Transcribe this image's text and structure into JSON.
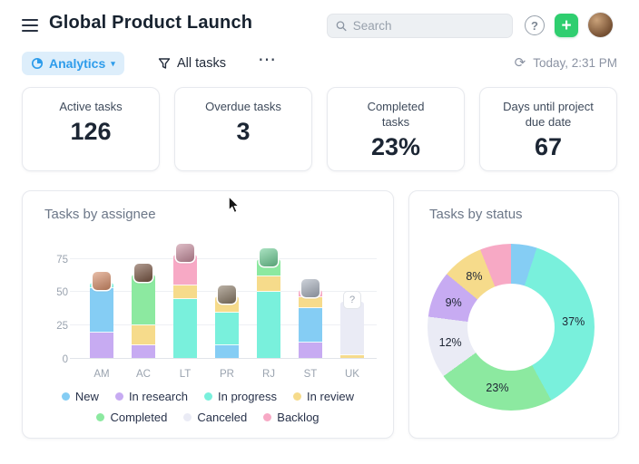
{
  "header": {
    "title": "Global Product Launch",
    "search_placeholder": "Search",
    "time": "Today, 2:31 PM"
  },
  "toolbar": {
    "analytics_label": "Analytics",
    "filter_label": "All tasks"
  },
  "icons": {
    "help": "?",
    "add": "+",
    "more": "⋯",
    "chevron_down": "▾",
    "refresh": "⟳"
  },
  "stats": [
    {
      "label": "Active tasks",
      "value": "126"
    },
    {
      "label": "Overdue tasks",
      "value": "3"
    },
    {
      "label": "Completed tasks",
      "value": "23%"
    },
    {
      "label": "Days until project due date",
      "value": "67"
    }
  ],
  "chart_data": [
    {
      "type": "bar",
      "stacked": true,
      "title": "Tasks by assignee",
      "categories": [
        "AM",
        "AC",
        "LT",
        "PR",
        "RJ",
        "ST",
        "UK"
      ],
      "series": [
        {
          "name": "New",
          "color": "#85cdf4",
          "values": [
            33,
            0,
            0,
            10,
            0,
            26,
            0
          ]
        },
        {
          "name": "In research",
          "color": "#c7abf2",
          "values": [
            20,
            10,
            0,
            0,
            0,
            12,
            0
          ]
        },
        {
          "name": "In progress",
          "color": "#79f0dc",
          "values": [
            4,
            0,
            45,
            25,
            50,
            0,
            0
          ]
        },
        {
          "name": "In review",
          "color": "#f6db8b",
          "values": [
            0,
            15,
            10,
            12,
            12,
            8,
            3
          ]
        },
        {
          "name": "Completed",
          "color": "#8ce9a0",
          "values": [
            0,
            38,
            0,
            0,
            13,
            0,
            0
          ]
        },
        {
          "name": "Canceled",
          "color": "#eaebf5",
          "values": [
            0,
            0,
            0,
            0,
            0,
            0,
            40
          ]
        },
        {
          "name": "Backlog",
          "color": "#f7a9c5",
          "values": [
            0,
            0,
            23,
            0,
            0,
            6,
            0
          ]
        }
      ],
      "stack_order": [
        "In research",
        "New",
        "In progress",
        "In review",
        "Completed",
        "Canceled",
        "Backlog"
      ],
      "avatars": [
        {
          "bg": "#d9906b",
          "text": ""
        },
        {
          "bg": "#7a5643",
          "text": ""
        },
        {
          "bg": "#c98fa0",
          "text": ""
        },
        {
          "bg": "#8a7a66",
          "text": ""
        },
        {
          "bg": "#6fcf97",
          "text": ""
        },
        {
          "bg": "#aab2bf",
          "text": ""
        },
        {
          "bg": "#ffffff",
          "text": "?"
        }
      ],
      "ylim": [
        0,
        85
      ],
      "yticks": [
        0,
        25,
        50,
        75
      ],
      "grid": true,
      "legend_position": "bottom"
    },
    {
      "type": "pie",
      "variant": "donut",
      "title": "Tasks by status",
      "slices": [
        {
          "name": "New",
          "color": "#85cdf4",
          "percent": 5,
          "label": ""
        },
        {
          "name": "In progress",
          "color": "#79f0dc",
          "percent": 37,
          "label": "37%"
        },
        {
          "name": "Completed",
          "color": "#8ce9a0",
          "percent": 23,
          "label": "23%"
        },
        {
          "name": "Canceled",
          "color": "#eaebf5",
          "percent": 12,
          "label": "12%"
        },
        {
          "name": "In research",
          "color": "#c7abf2",
          "percent": 9,
          "label": "9%"
        },
        {
          "name": "In review",
          "color": "#f6db8b",
          "percent": 8,
          "label": "8%"
        },
        {
          "name": "Backlog",
          "color": "#f7a9c5",
          "percent": 6,
          "label": ""
        }
      ]
    }
  ]
}
